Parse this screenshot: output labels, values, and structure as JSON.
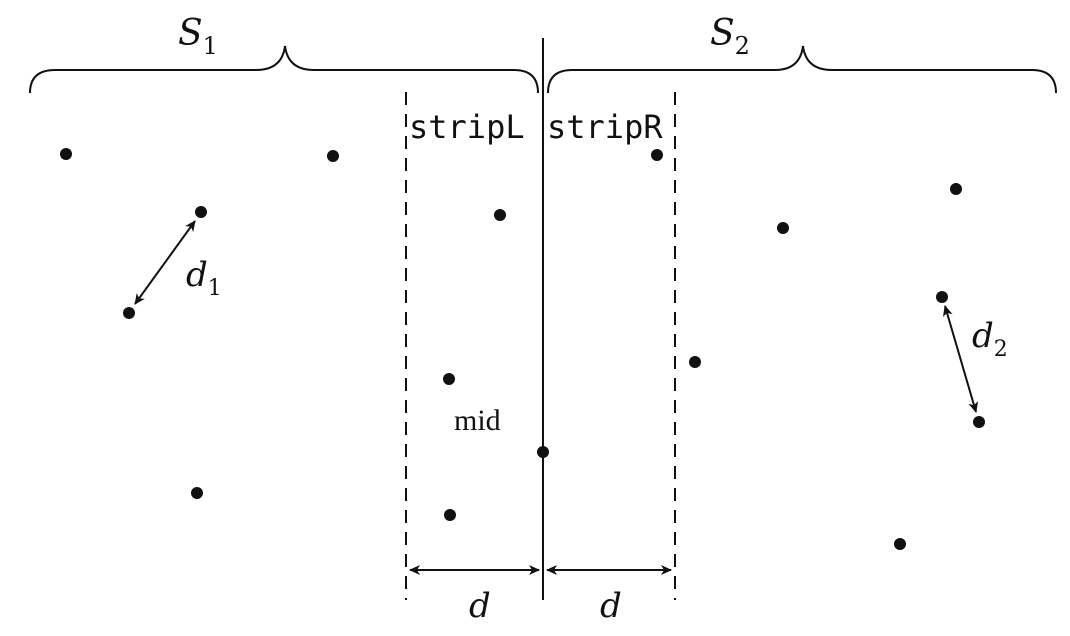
{
  "labels": {
    "s1": "S",
    "s1_sub": "1",
    "s2": "S",
    "s2_sub": "2",
    "strip_left": "stripL",
    "strip_right": "stripR",
    "mid": "mid",
    "d1": "d",
    "d1_sub": "1",
    "d2": "d",
    "d2_sub": "2",
    "d_left": "d",
    "d_right": "d"
  },
  "colors": {
    "ink": "#111111"
  }
}
